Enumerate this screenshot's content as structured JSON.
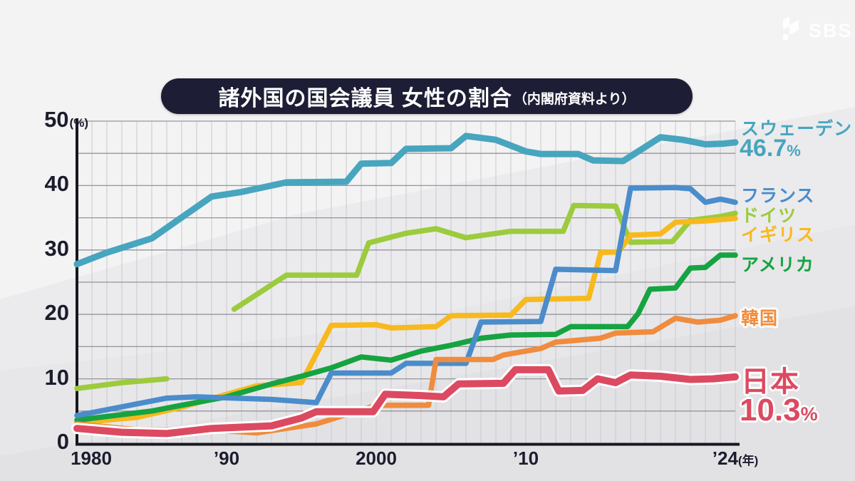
{
  "brand": {
    "logo_text": "SBS"
  },
  "header": {
    "title": "諸外国の国会議員 女性の割合",
    "source_note": "（内閣府資料より）"
  },
  "axes": {
    "y_ticks": [
      {
        "v": 0,
        "label": "0"
      },
      {
        "v": 10,
        "label": "10"
      },
      {
        "v": 20,
        "label": "20"
      },
      {
        "v": 30,
        "label": "30"
      },
      {
        "v": 40,
        "label": "40"
      },
      {
        "v": 50,
        "label": "50",
        "unit": "(%)"
      }
    ],
    "x_ticks": [
      {
        "year": 1980,
        "label": "1980",
        "dx": 20
      },
      {
        "year": 1990,
        "label": "’90"
      },
      {
        "year": 2000,
        "label": "2000"
      },
      {
        "year": 2010,
        "label": "’10"
      },
      {
        "year": 2024,
        "label": "’24",
        "suffix": "(年)"
      }
    ]
  },
  "chart_data": {
    "type": "line",
    "title": "諸外国の国会議員 女性の割合",
    "source": "内閣府資料より",
    "xlabel": "年",
    "ylabel": "%",
    "x_range": [
      1980,
      2024
    ],
    "ylim": [
      0,
      50
    ],
    "y_grid_step": 5,
    "x_grid_step_years": 1,
    "grid": true,
    "legend_position": "right",
    "series": [
      {
        "id": "sweden",
        "name": "スウェーデン",
        "value_label": "46.7",
        "unit": "%",
        "color": "#47a5be",
        "width": 9,
        "emphasize": false,
        "segments": [
          [
            [
              1980,
              27.8
            ],
            [
              1982,
              29.6
            ],
            [
              1985,
              31.8
            ],
            [
              1989,
              38.3
            ],
            [
              1991,
              39.0
            ],
            [
              1994,
              40.5
            ],
            [
              1998,
              40.6
            ],
            [
              1999,
              43.4
            ],
            [
              2001,
              43.5
            ],
            [
              2002,
              45.7
            ],
            [
              2005,
              45.8
            ],
            [
              2006,
              47.7
            ],
            [
              2008,
              47.1
            ],
            [
              2010,
              45.3
            ],
            [
              2011,
              44.9
            ],
            [
              2013.5,
              44.9
            ],
            [
              2014.5,
              43.9
            ],
            [
              2016.5,
              43.8
            ],
            [
              2019,
              47.5
            ],
            [
              2020.5,
              47.1
            ],
            [
              2022,
              46.4
            ],
            [
              2023.2,
              46.5
            ],
            [
              2024,
              46.7
            ]
          ]
        ]
      },
      {
        "id": "germany",
        "name": "ドイツ",
        "color": "#9ccb3d",
        "width": 7.5,
        "emphasize": false,
        "segments": [
          [
            [
              1980,
              8.5
            ],
            [
              1983,
              9.4
            ],
            [
              1986,
              10.0
            ]
          ],
          [
            [
              1990.5,
              20.8
            ],
            [
              1994,
              26.1
            ],
            [
              1998.7,
              26.1
            ],
            [
              1999.5,
              31.1
            ],
            [
              2002,
              32.6
            ],
            [
              2004,
              33.3
            ],
            [
              2006,
              31.9
            ],
            [
              2009,
              32.9
            ],
            [
              2012.5,
              32.9
            ],
            [
              2013.2,
              36.9
            ],
            [
              2016,
              36.8
            ],
            [
              2017,
              31.2
            ],
            [
              2019.8,
              31.3
            ],
            [
              2021,
              34.6
            ],
            [
              2023,
              35.2
            ],
            [
              2024,
              35.7
            ]
          ]
        ]
      },
      {
        "id": "uk",
        "name": "イギリス",
        "color": "#f7b91d",
        "width": 7.5,
        "emphasize": false,
        "segments": [
          [
            [
              1980,
              3.2
            ],
            [
              1984,
              4.0
            ],
            [
              1987,
              5.6
            ],
            [
              1992,
              8.9
            ],
            [
              1995,
              9.4
            ],
            [
              1997,
              18.3
            ],
            [
              2000,
              18.4
            ],
            [
              2001,
              17.9
            ],
            [
              2004,
              18.1
            ],
            [
              2005,
              19.8
            ],
            [
              2009,
              19.9
            ],
            [
              2010,
              22.3
            ],
            [
              2014.2,
              22.5
            ],
            [
              2015,
              29.6
            ],
            [
              2016.2,
              29.7
            ],
            [
              2017,
              32.3
            ],
            [
              2019,
              32.5
            ],
            [
              2020,
              34.3
            ],
            [
              2022,
              34.5
            ],
            [
              2024,
              34.9
            ]
          ]
        ]
      },
      {
        "id": "us",
        "name": "アメリカ",
        "color": "#16a341",
        "width": 7.5,
        "emphasize": false,
        "segments": [
          [
            [
              1980,
              3.6
            ],
            [
              1985,
              5.0
            ],
            [
              1987,
              5.9
            ],
            [
              1990,
              7.2
            ],
            [
              1993,
              9.2
            ],
            [
              1995,
              10.4
            ],
            [
              1997,
              11.7
            ],
            [
              1999,
              13.4
            ],
            [
              2001,
              12.9
            ],
            [
              2003,
              14.3
            ],
            [
              2005,
              15.2
            ],
            [
              2007,
              16.3
            ],
            [
              2009,
              16.8
            ],
            [
              2012,
              16.9
            ],
            [
              2013,
              18.1
            ],
            [
              2016.8,
              18.1
            ],
            [
              2017.5,
              20.1
            ],
            [
              2018.3,
              23.9
            ],
            [
              2020,
              24.1
            ],
            [
              2021,
              27.2
            ],
            [
              2022,
              27.3
            ],
            [
              2023,
              29.2
            ],
            [
              2024,
              29.2
            ]
          ]
        ]
      },
      {
        "id": "france",
        "name": "フランス",
        "color": "#4b8ccb",
        "width": 7.5,
        "emphasize": false,
        "segments": [
          [
            [
              1980,
              4.3
            ],
            [
              1986,
              7.0
            ],
            [
              1988,
              7.2
            ],
            [
              1993,
              6.8
            ],
            [
              1996,
              6.3
            ],
            [
              1997,
              10.9
            ],
            [
              2001,
              10.9
            ],
            [
              2002,
              12.4
            ],
            [
              2006,
              12.4
            ],
            [
              2007,
              18.8
            ],
            [
              2011,
              18.9
            ],
            [
              2012,
              27.0
            ],
            [
              2016,
              26.8
            ],
            [
              2017,
              39.6
            ],
            [
              2020,
              39.7
            ],
            [
              2021,
              39.5
            ],
            [
              2022,
              37.4
            ],
            [
              2023,
              37.9
            ],
            [
              2024,
              37.4
            ]
          ]
        ]
      },
      {
        "id": "korea",
        "name": "韓国",
        "color": "#ef8c3e",
        "width": 7.5,
        "emphasize": false,
        "segments": [
          [
            [
              1980,
              3.0
            ],
            [
              1984,
              2.1
            ],
            [
              1990,
              1.9
            ],
            [
              1992,
              1.6
            ],
            [
              1996,
              3.0
            ],
            [
              2000,
              5.9
            ],
            [
              2003.5,
              5.9
            ],
            [
              2004,
              13.0
            ],
            [
              2007.8,
              13.0
            ],
            [
              2008.5,
              13.7
            ],
            [
              2011,
              14.7
            ],
            [
              2012,
              15.7
            ],
            [
              2015,
              16.3
            ],
            [
              2016,
              17.1
            ],
            [
              2018.5,
              17.3
            ],
            [
              2020,
              19.4
            ],
            [
              2021.5,
              18.8
            ],
            [
              2023,
              19.1
            ],
            [
              2024,
              19.8
            ]
          ]
        ]
      },
      {
        "id": "japan",
        "name": "日本",
        "value_label": "10.3",
        "unit": "%",
        "color": "#dc4a61",
        "width": 10,
        "emphasize": true,
        "segments": [
          [
            [
              1980,
              2.3
            ],
            [
              1983,
              1.7
            ],
            [
              1986,
              1.5
            ],
            [
              1989,
              2.3
            ],
            [
              1993,
              2.7
            ],
            [
              1995,
              3.9
            ],
            [
              1996,
              4.9
            ],
            [
              1999.8,
              4.9
            ],
            [
              2000.6,
              7.6
            ],
            [
              2003,
              7.4
            ],
            [
              2004.5,
              7.2
            ],
            [
              2005.5,
              9.2
            ],
            [
              2008.5,
              9.3
            ],
            [
              2009.3,
              11.4
            ],
            [
              2011.5,
              11.4
            ],
            [
              2012.2,
              8.1
            ],
            [
              2013.8,
              8.2
            ],
            [
              2014.8,
              10.0
            ],
            [
              2016,
              9.4
            ],
            [
              2017,
              10.6
            ],
            [
              2019,
              10.4
            ],
            [
              2021,
              9.9
            ],
            [
              2022.5,
              10.0
            ],
            [
              2024,
              10.3
            ]
          ]
        ]
      }
    ]
  }
}
